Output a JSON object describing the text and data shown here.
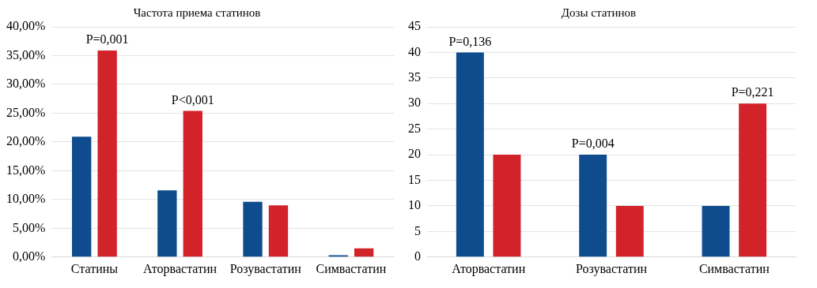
{
  "chart_data": [
    {
      "type": "bar",
      "title": "Частота приема статинов",
      "categories": [
        "Статины",
        "Аторвастатин",
        "Розувастатин",
        "Симвастатин"
      ],
      "series": [
        {
          "color": "#0e4c8e",
          "values": [
            20.9,
            11.6,
            9.6,
            0.3
          ]
        },
        {
          "color": "#d2232a",
          "values": [
            35.9,
            25.4,
            9.0,
            1.5
          ]
        }
      ],
      "ylim": [
        0,
        40
      ],
      "yticks": [
        {
          "value": 0,
          "label": "0,00%"
        },
        {
          "value": 5,
          "label": "5,00%"
        },
        {
          "value": 10,
          "label": "10,00%"
        },
        {
          "value": 15,
          "label": "15,00%"
        },
        {
          "value": 20,
          "label": "20,00%"
        },
        {
          "value": 25,
          "label": "25,00%"
        },
        {
          "value": 30,
          "label": "30,00%"
        },
        {
          "value": 35,
          "label": "35,00%"
        },
        {
          "value": 40,
          "label": "40,00%"
        }
      ],
      "grid": "y",
      "legend": false,
      "annotations": [
        {
          "text": "P=0,001",
          "x": "Статины",
          "y": 35.9
        },
        {
          "text": "P<0,001",
          "x": "Аторвастатин",
          "y": 25.4
        }
      ]
    },
    {
      "type": "bar",
      "title": "Дозы статинов",
      "categories": [
        "Аторвастатин",
        "Розувастатин",
        "Симвастатин"
      ],
      "series": [
        {
          "color": "#0e4c8e",
          "values": [
            40,
            20,
            10
          ]
        },
        {
          "color": "#d2232a",
          "values": [
            20,
            10,
            30
          ]
        }
      ],
      "ylim": [
        0,
        45
      ],
      "yticks": [
        0,
        5,
        10,
        15,
        20,
        25,
        30,
        35,
        40,
        45
      ],
      "grid": "y",
      "legend": false,
      "annotations": [
        "P=0,136",
        "P=0,004",
        "P=0,221"
      ]
    }
  ]
}
